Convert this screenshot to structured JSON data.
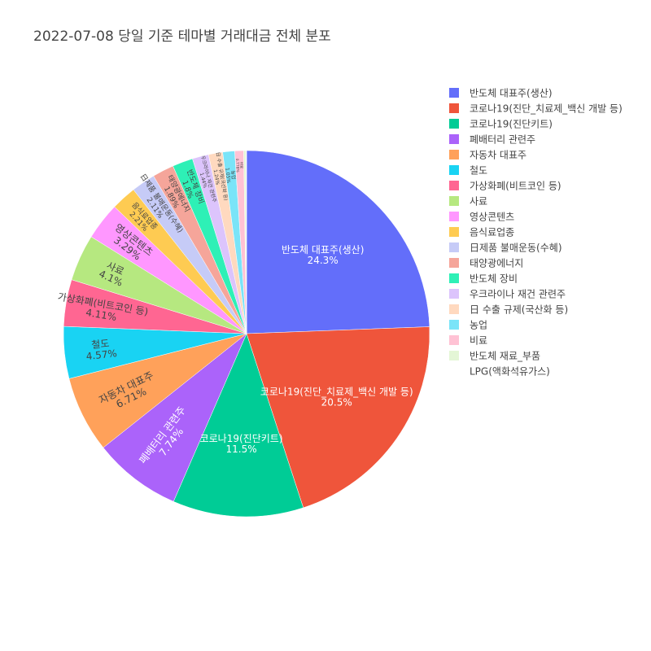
{
  "chart_data": {
    "type": "pie",
    "title": "2022-07-08 당일 기준 테마별 거래대금 전체 분포",
    "legend_position": "right",
    "sort": "descending",
    "direction": "clockwise",
    "start_angle": "12 o'clock",
    "categories": [
      "반도체 대표주(생산)",
      "코로나19(진단_치료제_백신 개발 등)",
      "코로나19(진단키트)",
      "폐배터리 관련주",
      "자동차 대표주",
      "철도",
      "가상화폐(비트코인 등)",
      "사료",
      "영상콘텐츠",
      "음식료업종",
      "日제품 불매운동(수혜)",
      "태양광에너지",
      "반도체 장비",
      "우크라이나 재건 관련주",
      "日 수출 규제(국산화 등)",
      "농업",
      "비료",
      "반도체 재료_부품",
      "LPG(액화석유가스)"
    ],
    "values": [
      24.3,
      20.5,
      11.5,
      7.74,
      6.71,
      4.57,
      4.11,
      4.1,
      3.29,
      2.21,
      2.11,
      1.89,
      1.8,
      1.44,
      1.24,
      1.05,
      0.778,
      0.2,
      0.05
    ],
    "labels": [
      "24.3%",
      "20.5%",
      "11.5%",
      "7.74%",
      "6.71%",
      "4.57%",
      "4.11%",
      "4.1%",
      "3.29%",
      "2.21%",
      "2.11%",
      "1.89%",
      "1.8%",
      "1.44%",
      "1.24%",
      "1.05%",
      "0.778%",
      "",
      ""
    ],
    "colors": [
      "#636efa",
      "#EF553B",
      "#00cc96",
      "#ab63fa",
      "#FFA15A",
      "#19d3f3",
      "#FF6692",
      "#B6E880",
      "#FF97FF",
      "#FECB52",
      "#c6cbf7",
      "#f5a59a",
      "#2ef0b6",
      "#dcc4fc",
      "#ffd9bf",
      "#7ae4f8",
      "#ffc2d4",
      "#e4f6d6",
      "#ffffff"
    ]
  }
}
